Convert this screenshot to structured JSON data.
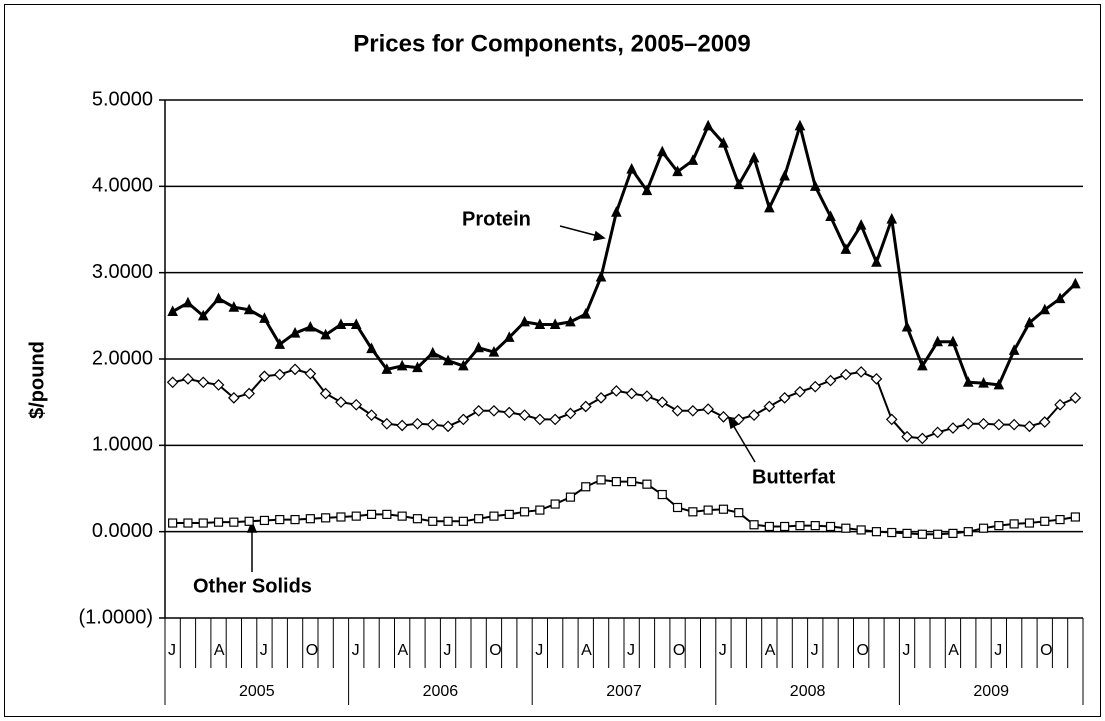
{
  "chart_data": {
    "type": "line",
    "title": "Prices for Components, 2005–2009",
    "y_label": "$/pound",
    "categories": [
      "J",
      null,
      null,
      "A",
      null,
      null,
      "J",
      null,
      null,
      "O",
      null,
      null,
      "J",
      null,
      null,
      "A",
      null,
      null,
      "J",
      null,
      null,
      "O",
      null,
      null,
      "J",
      null,
      null,
      "A",
      null,
      null,
      "J",
      null,
      null,
      "O",
      null,
      null,
      "J",
      null,
      null,
      "A",
      null,
      null,
      "J",
      null,
      null,
      "O",
      null,
      null,
      "J",
      null,
      null,
      "A",
      null,
      null,
      "J",
      null,
      null,
      "O",
      null,
      null
    ],
    "years": [
      "2005",
      "2006",
      "2007",
      "2008",
      "2009"
    ],
    "ylim": [
      -1,
      5
    ],
    "yticks": [
      {
        "value": -1,
        "label": "(1.0000)"
      },
      {
        "value": 0,
        "label": "0.0000"
      },
      {
        "value": 1,
        "label": "1.0000"
      },
      {
        "value": 2,
        "label": "2.0000"
      },
      {
        "value": 3,
        "label": "3.0000"
      },
      {
        "value": 4,
        "label": "4.0000"
      },
      {
        "value": 5,
        "label": "5.0000"
      }
    ],
    "grid": true,
    "series": [
      {
        "name": "Protein",
        "color": "#000000",
        "marker": "triangle",
        "values": [
          2.55,
          2.65,
          2.5,
          2.7,
          2.6,
          2.57,
          2.47,
          2.17,
          2.3,
          2.37,
          2.28,
          2.4,
          2.4,
          2.12,
          1.88,
          1.92,
          1.9,
          2.07,
          1.98,
          1.92,
          2.13,
          2.08,
          2.25,
          2.43,
          2.4,
          2.4,
          2.43,
          2.52,
          2.95,
          3.7,
          4.2,
          3.95,
          4.4,
          4.17,
          4.3,
          4.7,
          4.5,
          4.02,
          4.33,
          3.75,
          4.12,
          4.7,
          4.0,
          3.65,
          3.27,
          3.55,
          3.12,
          3.62,
          2.37,
          1.92,
          2.2,
          2.2,
          1.73,
          1.72,
          1.7,
          2.1,
          2.42,
          2.57,
          2.7,
          2.87
        ]
      },
      {
        "name": "Butterfat",
        "color": "#000000",
        "marker": "diamond",
        "values": [
          1.73,
          1.77,
          1.73,
          1.7,
          1.55,
          1.6,
          1.8,
          1.82,
          1.88,
          1.83,
          1.6,
          1.5,
          1.47,
          1.35,
          1.25,
          1.23,
          1.25,
          1.24,
          1.22,
          1.3,
          1.4,
          1.4,
          1.38,
          1.35,
          1.3,
          1.3,
          1.37,
          1.45,
          1.55,
          1.63,
          1.6,
          1.57,
          1.5,
          1.4,
          1.4,
          1.42,
          1.33,
          1.3,
          1.35,
          1.45,
          1.55,
          1.62,
          1.68,
          1.75,
          1.82,
          1.85,
          1.77,
          1.3,
          1.1,
          1.08,
          1.15,
          1.2,
          1.25,
          1.25,
          1.24,
          1.24,
          1.22,
          1.27,
          1.47,
          1.55
        ]
      },
      {
        "name": "Other Solids",
        "color": "#000000",
        "marker": "square",
        "values": [
          0.1,
          0.1,
          0.1,
          0.11,
          0.11,
          0.12,
          0.13,
          0.14,
          0.14,
          0.15,
          0.16,
          0.17,
          0.18,
          0.2,
          0.2,
          0.18,
          0.15,
          0.12,
          0.12,
          0.12,
          0.15,
          0.18,
          0.2,
          0.23,
          0.25,
          0.32,
          0.4,
          0.52,
          0.6,
          0.58,
          0.58,
          0.55,
          0.43,
          0.28,
          0.23,
          0.25,
          0.26,
          0.22,
          0.08,
          0.06,
          0.06,
          0.07,
          0.07,
          0.06,
          0.04,
          0.02,
          0.0,
          -0.01,
          -0.02,
          -0.03,
          -0.03,
          -0.02,
          0.0,
          0.04,
          0.07,
          0.09,
          0.1,
          0.12,
          0.14,
          0.17
        ]
      }
    ]
  }
}
